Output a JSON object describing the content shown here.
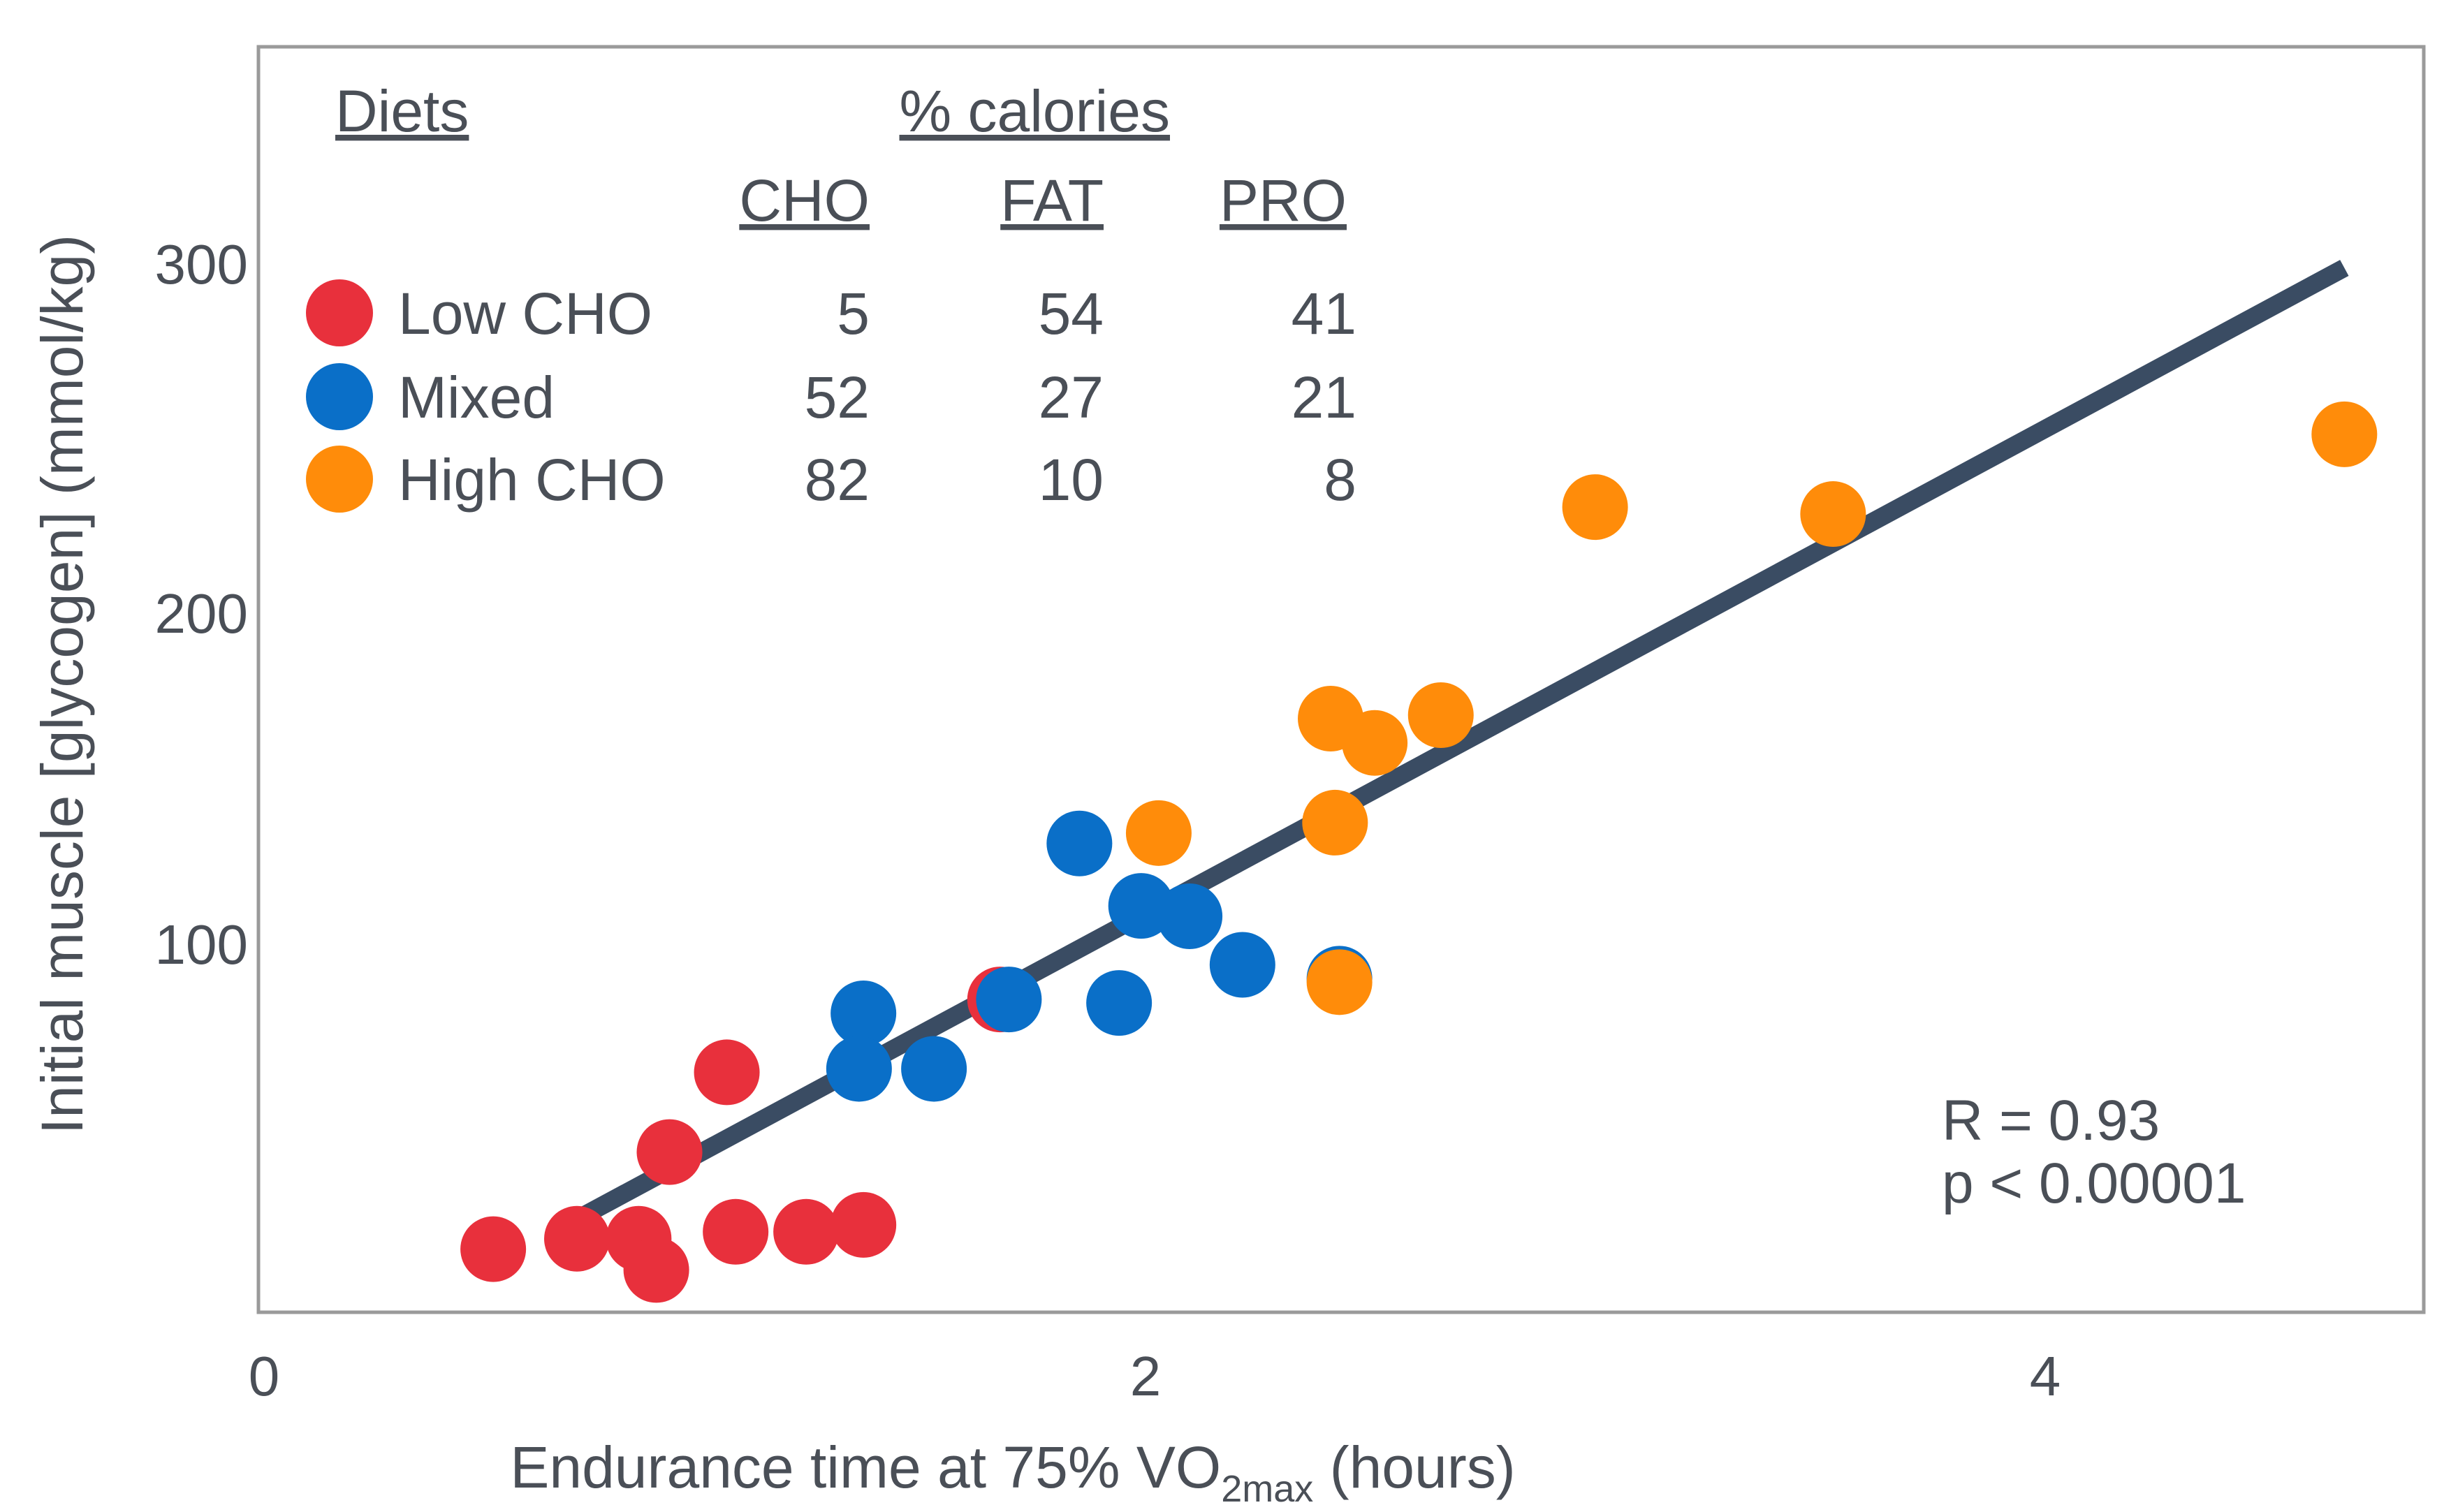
{
  "chart_data": {
    "type": "scatter",
    "xlabel": {
      "main": "Endurance time at 75% VO",
      "sub": "2max",
      "suffix": " (hours)"
    },
    "ylabel": "Initial muscle [glycogen] (mmol/kg)",
    "xlim": [
      0,
      4.7
    ],
    "ylim": [
      0,
      360
    ],
    "xticks": [
      0,
      2,
      4
    ],
    "yticks": [
      100,
      200,
      300
    ],
    "grid": false,
    "legend": {
      "title": "Diets",
      "group_header": "% calories",
      "columns": [
        "CHO",
        "FAT",
        "PRO"
      ],
      "placement": "top-left"
    },
    "series": [
      {
        "name": "Low CHO",
        "color": "#e8303c",
        "calories": [
          "5",
          "54",
          "41"
        ],
        "x": [
          0.52,
          0.71,
          0.85,
          0.89,
          0.92,
          1.05,
          1.07,
          1.23,
          1.36,
          1.67
        ],
        "y": [
          18,
          21,
          21,
          12,
          46,
          69,
          23,
          23,
          25,
          90
        ]
      },
      {
        "name": "Mixed",
        "color": "#0a6fc8",
        "calories": [
          "52",
          "27",
          "21"
        ],
        "x": [
          1.36,
          1.35,
          1.52,
          1.69,
          1.85,
          1.94,
          1.99,
          2.1,
          2.22,
          2.44
        ],
        "y": [
          86,
          70,
          70,
          90,
          135,
          89,
          117,
          114,
          100,
          96
        ]
      },
      {
        "name": "High CHO",
        "color": "#ff8c0a",
        "calories": [
          "82",
          "10",
          "8"
        ],
        "x": [
          2.03,
          2.43,
          2.42,
          2.52,
          2.67,
          2.44,
          3.02,
          3.56,
          4.72
        ],
        "y": [
          138,
          141,
          171,
          164,
          172,
          95,
          232,
          230,
          253
        ]
      }
    ],
    "regression": {
      "x": [
        0.73,
        4.72
      ],
      "y": [
        28,
        301
      ]
    },
    "annotation": {
      "r": "R = 0.93",
      "p": "p < 0.00001"
    }
  }
}
